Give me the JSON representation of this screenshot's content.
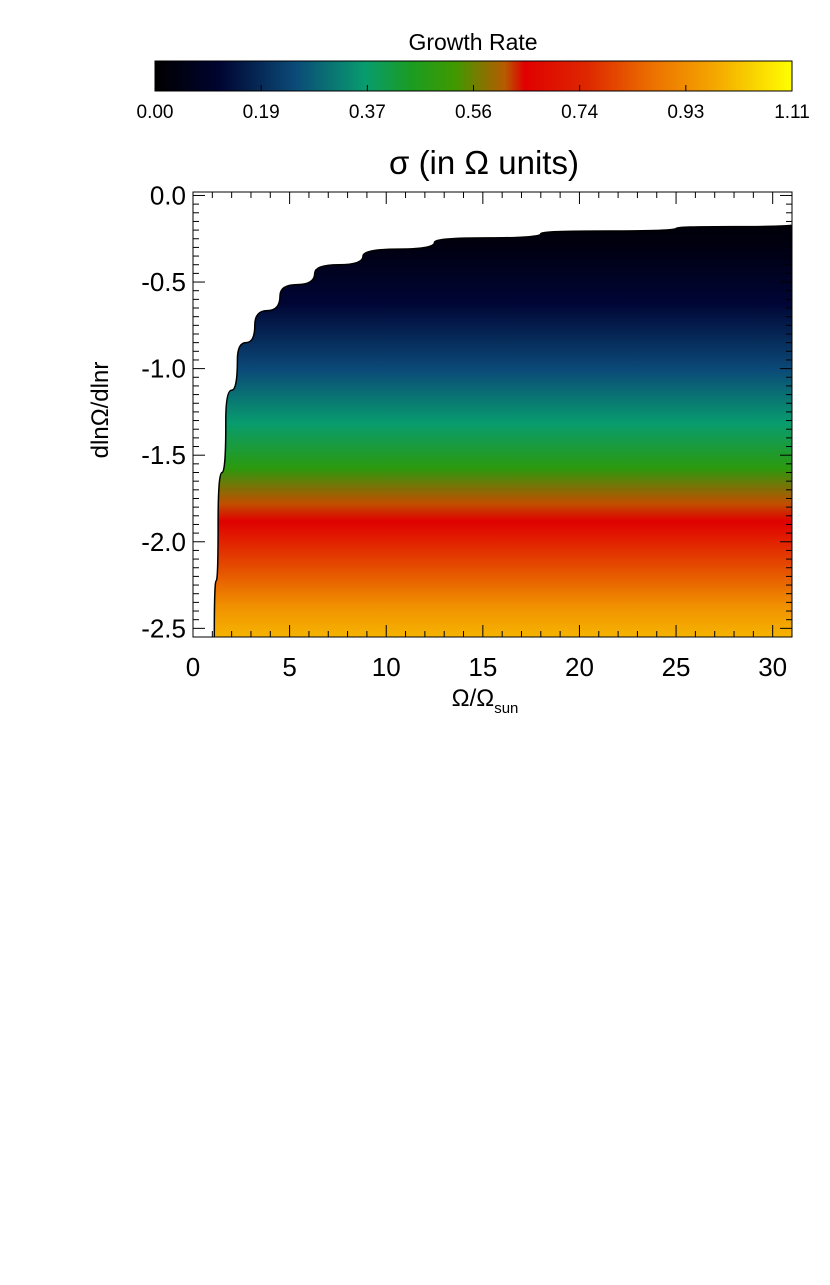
{
  "chart_data": {
    "type": "heatmap",
    "title": "σ (in Ω units)",
    "xlabel": "Ω/Ω",
    "xlabel_sub": "sun",
    "ylabel": "dlnΩ/dlnr",
    "xlim": [
      0,
      31
    ],
    "ylim": [
      -2.55,
      0.02
    ],
    "x_ticks": [
      0,
      5,
      10,
      15,
      20,
      25,
      30
    ],
    "x_tick_labels": [
      "0",
      "5",
      "10",
      "15",
      "20",
      "25",
      "30"
    ],
    "y_ticks": [
      0.0,
      -0.5,
      -1.0,
      -1.5,
      -2.0,
      -2.5
    ],
    "y_tick_labels": [
      "0.0",
      "-0.5",
      "-1.0",
      "-1.5",
      "-2.0",
      "-2.5"
    ],
    "colorbar": {
      "label": "Growth Rate",
      "range": [
        0.0,
        1.11
      ],
      "tick_labels": [
        "0.00",
        "0.19",
        "0.37",
        "0.56",
        "0.74",
        "0.93",
        "1.11"
      ],
      "colormap": [
        [
          0.0,
          "#000000"
        ],
        [
          0.1,
          "#000430"
        ],
        [
          0.22,
          "#0b4a78"
        ],
        [
          0.33,
          "#089c6e"
        ],
        [
          0.4,
          "#1a9c24"
        ],
        [
          0.47,
          "#3e9a00"
        ],
        [
          0.55,
          "#b85a00"
        ],
        [
          0.58,
          "#e00000"
        ],
        [
          0.68,
          "#de2800"
        ],
        [
          0.78,
          "#ec7000"
        ],
        [
          0.88,
          "#f4a800"
        ],
        [
          1.0,
          "#ffff00"
        ]
      ]
    },
    "stability_boundary": {
      "description_points_x": [
        1.1,
        1.3,
        1.7,
        2.3,
        3.2,
        4.5,
        6.3,
        8.8,
        12.5,
        18.0,
        25.0,
        31.0
      ],
      "description_points_y": [
        -2.55,
        -1.9,
        -1.3,
        -0.95,
        -0.75,
        -0.58,
        -0.45,
        -0.35,
        -0.27,
        -0.22,
        -0.19,
        -0.17
      ]
    }
  }
}
